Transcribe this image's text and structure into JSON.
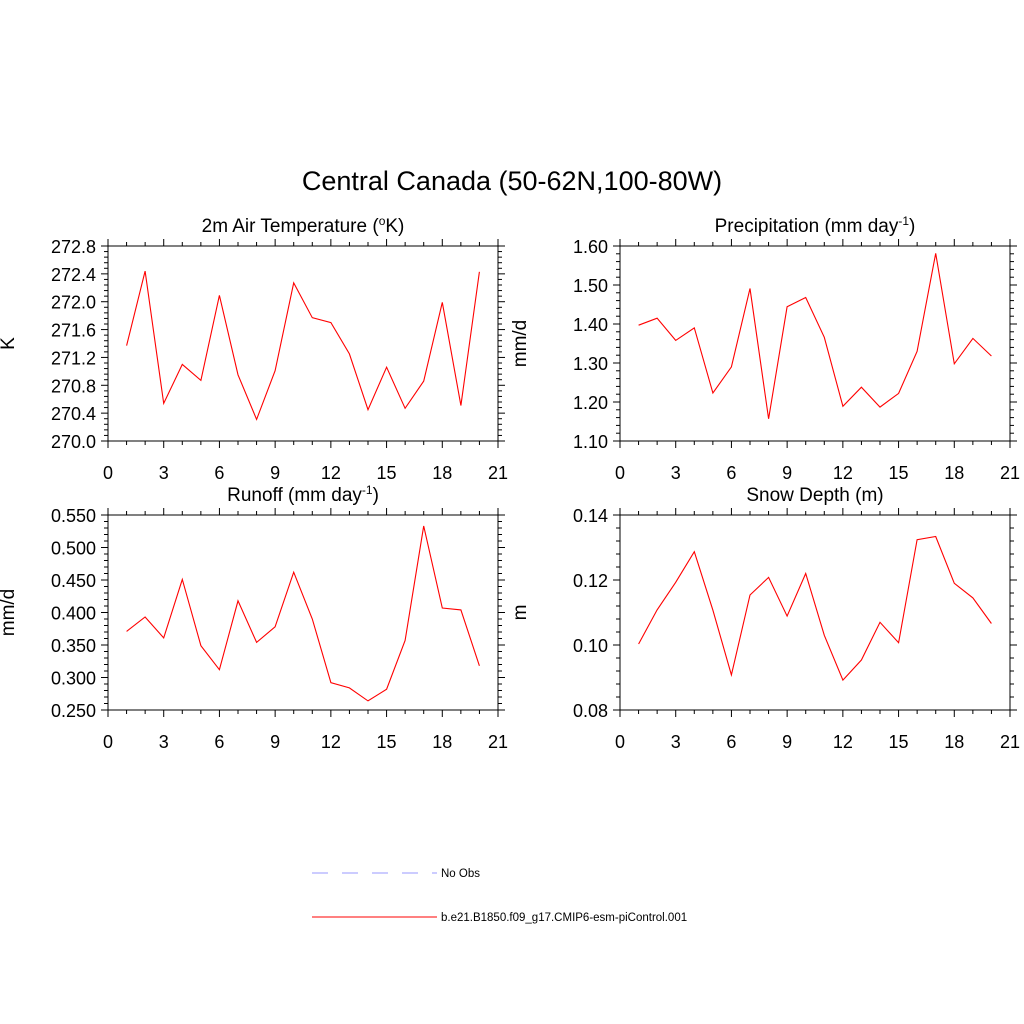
{
  "figure": {
    "title": "Central Canada (50-62N,100-80W)"
  },
  "colors": {
    "model_line": "#ff0000",
    "obs_line": "#9999ff",
    "axis": "#000000"
  },
  "legend": {
    "entries": [
      {
        "label": "No Obs",
        "style": "dashed",
        "color": "#9999ff"
      },
      {
        "label": "b.e21.B1850.f09_g17.CMIP6-esm-piControl.001",
        "style": "solid",
        "color": "#ff0000"
      }
    ]
  },
  "chart_data": [
    {
      "type": "line",
      "title": "2m Air Temperature (",
      "title_sup": "o",
      "title_tail": "K)",
      "xlabel": "",
      "ylabel": "K",
      "xlim": [
        0,
        21
      ],
      "ylim": [
        270.0,
        272.8
      ],
      "xticks": [
        "0",
        "3",
        "6",
        "9",
        "12",
        "15",
        "18",
        "21"
      ],
      "yticks": [
        "270.0",
        "270.4",
        "270.8",
        "271.2",
        "271.6",
        "272.0",
        "272.4",
        "272.8"
      ],
      "series": [
        {
          "name": "b.e21.B1850.f09_g17.CMIP6-esm-piControl.001",
          "x": [
            1,
            2,
            3,
            4,
            5,
            6,
            7,
            8,
            9,
            10,
            11,
            12,
            13,
            14,
            15,
            16,
            17,
            18,
            19,
            20
          ],
          "values": [
            271.37,
            272.44,
            270.54,
            271.1,
            270.87,
            272.09,
            270.95,
            270.31,
            271.01,
            272.27,
            271.77,
            271.7,
            271.25,
            270.45,
            271.06,
            270.47,
            270.86,
            271.99,
            270.51,
            272.43
          ]
        }
      ]
    },
    {
      "type": "line",
      "title": "Precipitation (mm day",
      "title_sup": "-1",
      "title_tail": ")",
      "xlabel": "",
      "ylabel": "mm/d",
      "xlim": [
        0,
        21
      ],
      "ylim": [
        1.1,
        1.6
      ],
      "xticks": [
        "0",
        "3",
        "6",
        "9",
        "12",
        "15",
        "18",
        "21"
      ],
      "yticks": [
        "1.10",
        "1.20",
        "1.30",
        "1.40",
        "1.50",
        "1.60"
      ],
      "series": [
        {
          "name": "b.e21.B1850.f09_g17.CMIP6-esm-piControl.001",
          "x": [
            1,
            2,
            3,
            4,
            5,
            6,
            7,
            8,
            9,
            10,
            11,
            12,
            13,
            14,
            15,
            16,
            17,
            18,
            19,
            20
          ],
          "values": [
            1.397,
            1.415,
            1.358,
            1.39,
            1.223,
            1.29,
            1.491,
            1.157,
            1.444,
            1.468,
            1.366,
            1.189,
            1.238,
            1.187,
            1.222,
            1.33,
            1.581,
            1.298,
            1.363,
            1.318
          ]
        }
      ]
    },
    {
      "type": "line",
      "title": "Runoff (mm day",
      "title_sup": "-1",
      "title_tail": ")",
      "xlabel": "",
      "ylabel": "mm/d",
      "xlim": [
        0,
        21
      ],
      "ylim": [
        0.25,
        0.55
      ],
      "xticks": [
        "0",
        "3",
        "6",
        "9",
        "12",
        "15",
        "18",
        "21"
      ],
      "yticks": [
        "0.250",
        "0.300",
        "0.350",
        "0.400",
        "0.450",
        "0.500",
        "0.550"
      ],
      "series": [
        {
          "name": "b.e21.B1850.f09_g17.CMIP6-esm-piControl.001",
          "x": [
            1,
            2,
            3,
            4,
            5,
            6,
            7,
            8,
            9,
            10,
            11,
            12,
            13,
            14,
            15,
            16,
            17,
            18,
            19,
            20
          ],
          "values": [
            0.371,
            0.393,
            0.361,
            0.451,
            0.349,
            0.312,
            0.418,
            0.354,
            0.378,
            0.462,
            0.39,
            0.292,
            0.284,
            0.264,
            0.282,
            0.357,
            0.533,
            0.407,
            0.404,
            0.318
          ]
        }
      ]
    },
    {
      "type": "line",
      "title": "Snow Depth (m)",
      "title_sup": "",
      "title_tail": "",
      "xlabel": "",
      "ylabel": "m",
      "xlim": [
        0,
        21
      ],
      "ylim": [
        0.08,
        0.14
      ],
      "xticks": [
        "0",
        "3",
        "6",
        "9",
        "12",
        "15",
        "18",
        "21"
      ],
      "yticks": [
        "0.08",
        "0.10",
        "0.12",
        "0.14"
      ],
      "series": [
        {
          "name": "b.e21.B1850.f09_g17.CMIP6-esm-piControl.001",
          "x": [
            1,
            2,
            3,
            4,
            5,
            6,
            7,
            8,
            9,
            10,
            11,
            12,
            13,
            14,
            15,
            16,
            17,
            18,
            19,
            20
          ],
          "values": [
            0.1003,
            0.1108,
            0.1193,
            0.1287,
            0.1107,
            0.0908,
            0.1154,
            0.1208,
            0.1089,
            0.122,
            0.103,
            0.0892,
            0.0954,
            0.107,
            0.1007,
            0.1324,
            0.1334,
            0.119,
            0.1145,
            0.1066
          ]
        }
      ]
    }
  ]
}
